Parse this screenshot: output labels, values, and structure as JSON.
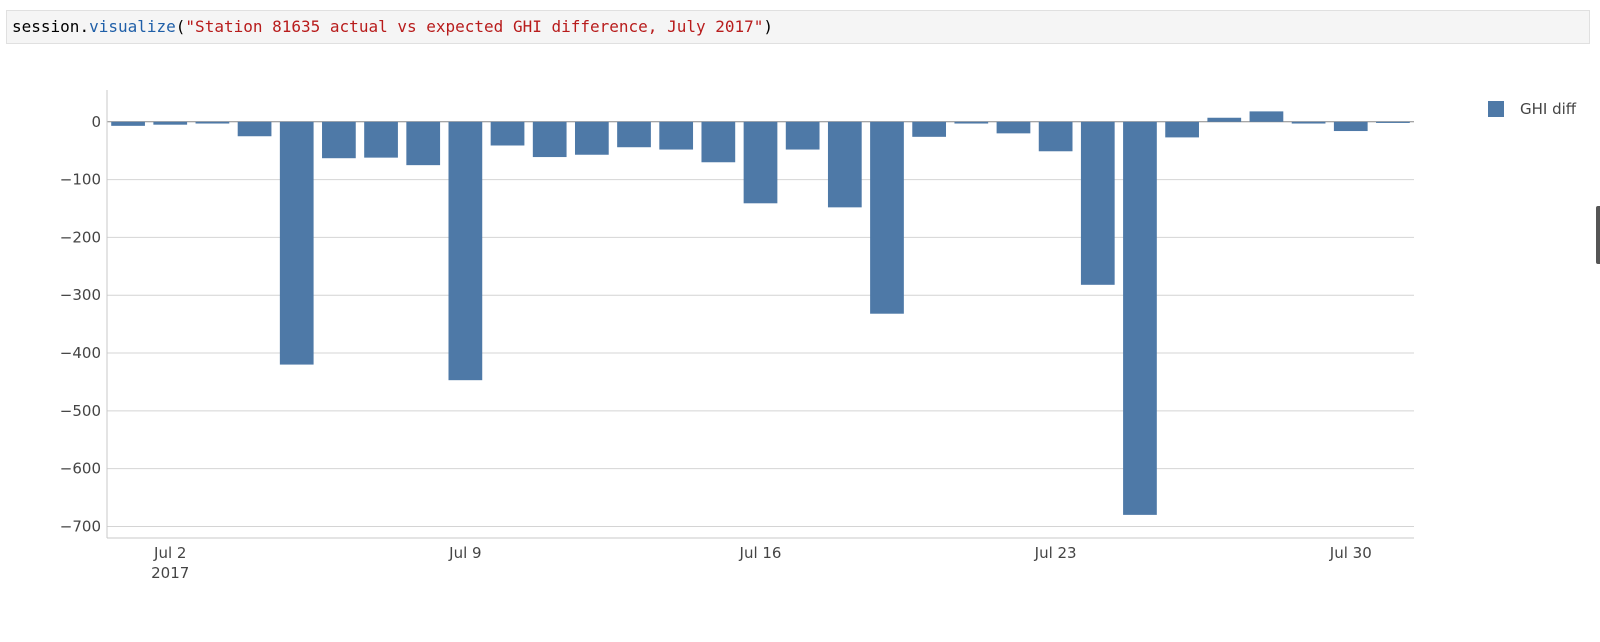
{
  "code": {
    "object": "session",
    "dot": ".",
    "method": "visualize",
    "open": "(",
    "arg": "\"Station 81635 actual vs expected GHI difference, July 2017\"",
    "close": ")"
  },
  "colors": {
    "bar": "#4e79a7",
    "grid": "#d4d4d4",
    "axis": "#c8c8c8",
    "zero": "#888888"
  },
  "legend": {
    "label": "GHI diff",
    "icon": "square-swatch"
  },
  "chart_data": {
    "type": "bar",
    "title": "",
    "xlabel": "",
    "ylabel": "",
    "ylim": [
      -720,
      55
    ],
    "grid": true,
    "legend_position": "top-right",
    "yticks": [
      0,
      -100,
      -200,
      -300,
      -400,
      -500,
      -600,
      -700
    ],
    "ytick_labels": [
      "0",
      "−100",
      "−200",
      "−300",
      "−400",
      "−500",
      "−600",
      "−700"
    ],
    "xticks": [
      {
        "day": 2,
        "label": "Jul 2",
        "sublabel": "2017"
      },
      {
        "day": 9,
        "label": "Jul 9",
        "sublabel": ""
      },
      {
        "day": 16,
        "label": "Jul 16",
        "sublabel": ""
      },
      {
        "day": 23,
        "label": "Jul 23",
        "sublabel": ""
      },
      {
        "day": 30,
        "label": "Jul 30",
        "sublabel": ""
      }
    ],
    "categories": [
      "2017-07-01",
      "2017-07-02",
      "2017-07-03",
      "2017-07-04",
      "2017-07-05",
      "2017-07-06",
      "2017-07-07",
      "2017-07-08",
      "2017-07-09",
      "2017-07-10",
      "2017-07-11",
      "2017-07-12",
      "2017-07-13",
      "2017-07-14",
      "2017-07-15",
      "2017-07-16",
      "2017-07-17",
      "2017-07-18",
      "2017-07-19",
      "2017-07-20",
      "2017-07-21",
      "2017-07-22",
      "2017-07-23",
      "2017-07-24",
      "2017-07-25",
      "2017-07-26",
      "2017-07-27",
      "2017-07-28",
      "2017-07-29",
      "2017-07-30",
      "2017-07-31"
    ],
    "series": [
      {
        "name": "GHI diff",
        "values": [
          -7,
          -5,
          -3,
          -25,
          -420,
          -63,
          -62,
          -75,
          -447,
          -41,
          -61,
          -57,
          -44,
          -48,
          -70,
          -141,
          -48,
          -148,
          -332,
          -26,
          -3,
          -20,
          -51,
          -282,
          -680,
          -27,
          7,
          18,
          -3,
          -16,
          -2
        ]
      }
    ]
  }
}
